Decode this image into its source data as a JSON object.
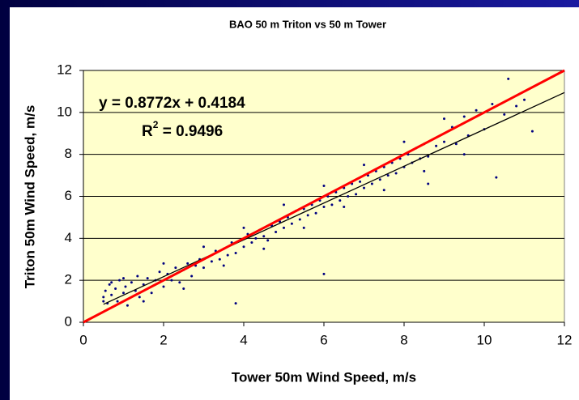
{
  "chart_data": {
    "type": "scatter",
    "title": "BAO 50 m Triton vs 50 m Tower",
    "x_label": "Tower 50m Wind Speed, m/s",
    "y_label": "Triton 50m Wind Speed, m/s",
    "equation": "y = 0.8772x + 0.4184",
    "r_squared": {
      "base": "R",
      "exponent": "2",
      "rest": " = 0.9496"
    },
    "xlim": [
      0,
      12
    ],
    "ylim": [
      0,
      12
    ],
    "xticks": [
      0,
      2,
      4,
      6,
      8,
      10,
      12
    ],
    "yticks": [
      0,
      2,
      4,
      6,
      8,
      10,
      12
    ],
    "grid": true,
    "background": "#ffffcc",
    "color": "#000080",
    "reference_lines": [
      {
        "color": "#ff0000",
        "x": [
          0,
          12
        ],
        "y": [
          0,
          12
        ]
      },
      {
        "color": "#000000",
        "x": [
          0.5,
          12
        ],
        "y": [
          0.857,
          10.945
        ]
      }
    ],
    "x": [
      0.5,
      0.55,
      0.6,
      0.65,
      0.7,
      0.8,
      0.85,
      0.9,
      1.0,
      1.05,
      1.1,
      1.2,
      1.3,
      1.35,
      1.4,
      1.5,
      1.6,
      1.7,
      1.8,
      1.9,
      2.0,
      2.1,
      2.2,
      2.3,
      2.4,
      2.5,
      2.6,
      2.7,
      2.8,
      2.9,
      3.0,
      3.1,
      3.2,
      3.3,
      3.4,
      3.5,
      3.6,
      3.7,
      3.8,
      3.9,
      4.0,
      4.1,
      4.2,
      4.3,
      4.4,
      4.5,
      4.6,
      4.7,
      4.8,
      4.9,
      5.0,
      5.1,
      5.2,
      5.3,
      5.4,
      5.5,
      5.6,
      5.7,
      5.8,
      5.9,
      6.0,
      6.1,
      6.2,
      6.3,
      6.4,
      6.5,
      6.6,
      6.7,
      6.8,
      6.9,
      7.0,
      7.1,
      7.2,
      7.3,
      7.4,
      7.5,
      7.6,
      7.7,
      7.8,
      7.9,
      8.0,
      8.1,
      8.2,
      8.3,
      8.4,
      8.5,
      8.6,
      8.8,
      9.0,
      9.2,
      9.3,
      9.5,
      9.6,
      9.8,
      10.0,
      10.2,
      10.3,
      10.5,
      10.6,
      10.8,
      11.0,
      11.2,
      6.0,
      3.8,
      8.6,
      0.5,
      0.7,
      1.0,
      1.5,
      2.0,
      2.5,
      3.0,
      3.5,
      4.0,
      4.5,
      5.0,
      5.5,
      6.0,
      6.5,
      7.0,
      7.5,
      8.0,
      8.5,
      9.0,
      9.5
    ],
    "y": [
      1.2,
      1.5,
      0.9,
      1.8,
      1.3,
      1.6,
      1.0,
      2.0,
      1.4,
      1.7,
      0.8,
      1.9,
      1.5,
      2.2,
      1.2,
      1.8,
      2.1,
      1.4,
      2.0,
      2.4,
      1.7,
      2.3,
      2.0,
      2.6,
      1.9,
      2.5,
      2.8,
      2.2,
      2.7,
      3.0,
      2.6,
      3.1,
      2.9,
      3.4,
      3.0,
      3.5,
      3.2,
      3.8,
      3.3,
      3.9,
      3.6,
      4.2,
      3.8,
      4.0,
      4.4,
      4.1,
      3.9,
      4.6,
      4.3,
      4.8,
      4.5,
      5.0,
      4.7,
      5.3,
      4.9,
      5.4,
      5.1,
      5.6,
      5.2,
      5.8,
      5.5,
      6.0,
      5.6,
      6.2,
      5.8,
      6.4,
      6.0,
      6.6,
      6.1,
      6.7,
      6.4,
      7.0,
      6.6,
      7.2,
      6.8,
      7.4,
      7.0,
      7.6,
      7.1,
      7.8,
      7.4,
      8.0,
      7.6,
      8.3,
      7.8,
      8.5,
      7.9,
      8.4,
      8.6,
      9.3,
      8.5,
      9.8,
      8.9,
      10.1,
      9.2,
      10.4,
      6.9,
      9.9,
      11.6,
      10.3,
      10.6,
      9.1,
      2.3,
      0.9,
      6.6,
      1.0,
      1.9,
      2.1,
      1.0,
      2.8,
      1.6,
      3.6,
      2.7,
      4.5,
      3.5,
      5.6,
      4.5,
      6.5,
      5.5,
      7.5,
      6.3,
      8.6,
      7.2,
      9.7,
      8.0
    ]
  }
}
